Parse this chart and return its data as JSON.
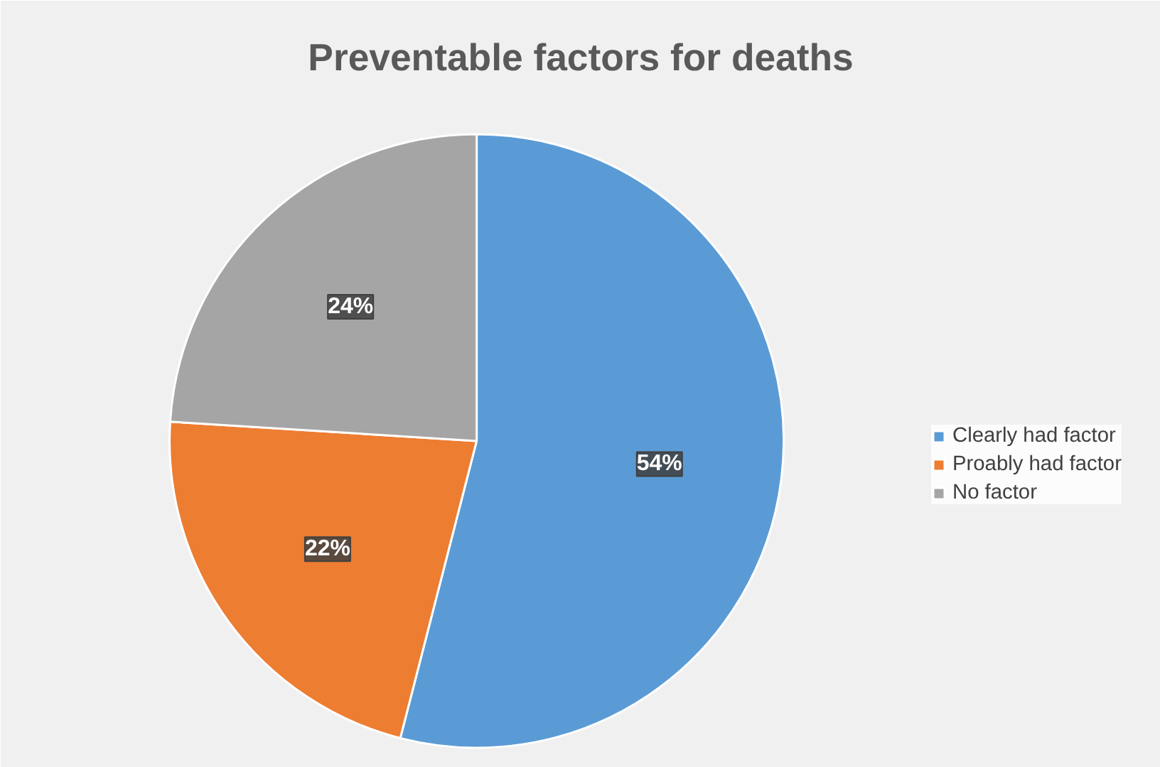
{
  "chart_data": {
    "type": "pie",
    "title": "Preventable factors for deaths",
    "categories": [
      "Clearly had factor",
      "Proably had factor",
      "No factor"
    ],
    "values": [
      54,
      22,
      24
    ],
    "colors": [
      "#5b9bd5",
      "#ed7d31",
      "#a5a5a5"
    ],
    "value_labels": [
      "54%",
      "22%",
      "24%"
    ],
    "legend": "right"
  }
}
